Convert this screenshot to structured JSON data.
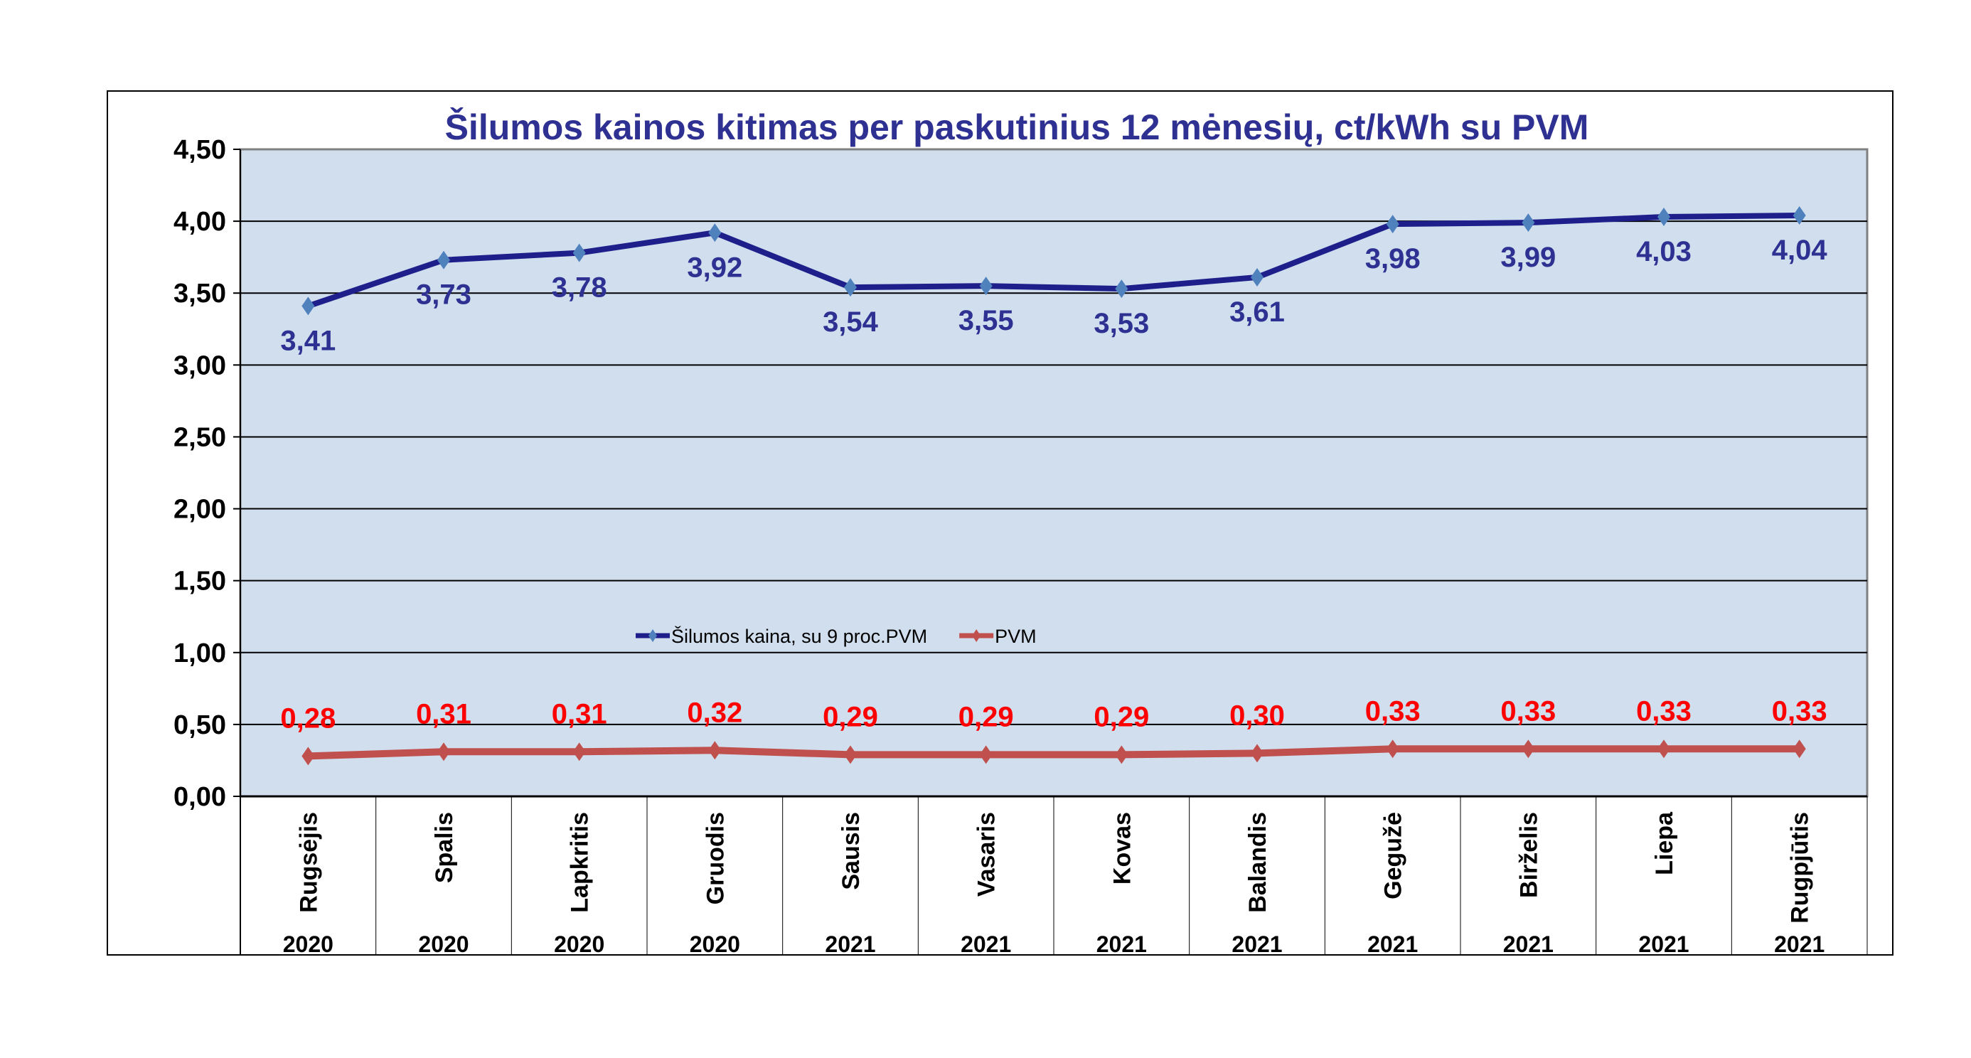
{
  "chart_data": {
    "type": "line",
    "title": "Šilumos kainos kitimas per paskutinius 12 mėnesių, ct/kWh su PVM",
    "categories": [
      "Rugsėjis",
      "Spalis",
      "Lapkritis",
      "Gruodis",
      "Sausis",
      "Vasaris",
      "Kovas",
      "Balandis",
      "Gegužė",
      "Birželis",
      "Liepa",
      "Rugpjūtis"
    ],
    "years": [
      "2020",
      "2020",
      "2020",
      "2020",
      "2021",
      "2021",
      "2021",
      "2021",
      "2021",
      "2021",
      "2021",
      "2021"
    ],
    "ylim": [
      0,
      4.5
    ],
    "yticks": [
      "0,00",
      "0,50",
      "1,00",
      "1,50",
      "2,00",
      "2,50",
      "3,00",
      "3,50",
      "4,00",
      "4,50"
    ],
    "grid": true,
    "legend_position": "center",
    "plot_background": "#d0deee",
    "series": [
      {
        "name": "Šilumos kaina, su 9 proc.PVM",
        "color": "#1f1f8c",
        "marker_color": "#4f81bd",
        "label_color": "#2e3192",
        "values": [
          3.41,
          3.73,
          3.78,
          3.92,
          3.54,
          3.55,
          3.53,
          3.61,
          3.98,
          3.99,
          4.03,
          4.04
        ],
        "labels": [
          "3,41",
          "3,73",
          "3,78",
          "3,92",
          "3,54",
          "3,55",
          "3,53",
          "3,61",
          "3,98",
          "3,99",
          "4,03",
          "4,04"
        ]
      },
      {
        "name": "PVM",
        "color": "#c0504d",
        "marker_color": "#c0504d",
        "label_color": "#ff0000",
        "values": [
          0.28,
          0.31,
          0.31,
          0.32,
          0.29,
          0.29,
          0.29,
          0.3,
          0.33,
          0.33,
          0.33,
          0.33
        ],
        "labels": [
          "0,28",
          "0,31",
          "0,31",
          "0,32",
          "0,29",
          "0,29",
          "0,29",
          "0,30",
          "0,33",
          "0,33",
          "0,33",
          "0,33"
        ]
      }
    ]
  }
}
